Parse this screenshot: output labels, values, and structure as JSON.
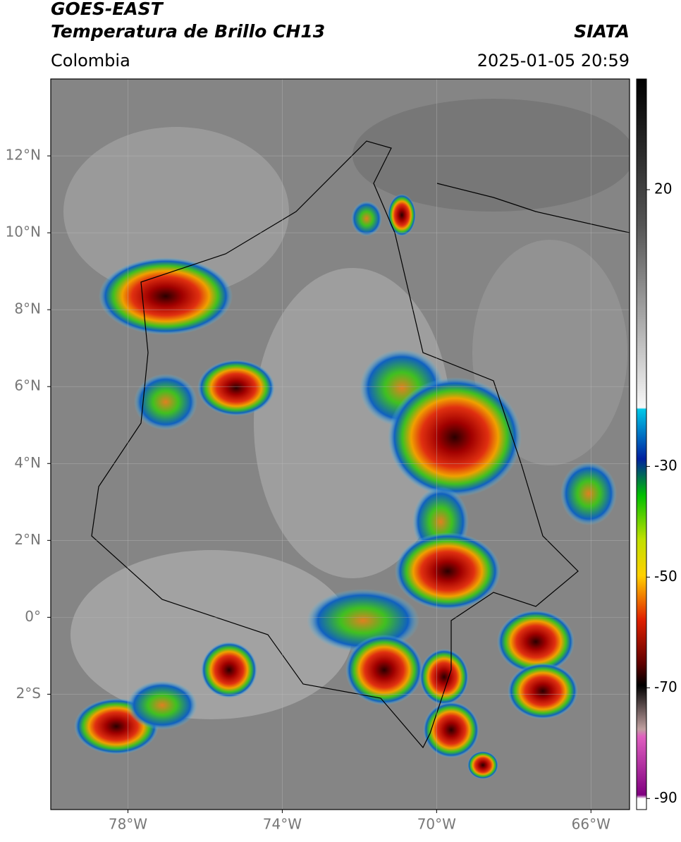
{
  "header": {
    "title": "GOES-EAST",
    "subtitle": "Temperatura de Brillo CH13",
    "source": "SIATA",
    "region": "Colombia",
    "datetime": "2025-01-05 20:59"
  },
  "map": {
    "lonlim": [
      -80,
      -65
    ],
    "latlim": [
      -5,
      14
    ],
    "lon_ticks": [
      {
        "value": -78,
        "label": "78°W"
      },
      {
        "value": -74,
        "label": "74°W"
      },
      {
        "value": -70,
        "label": "70°W"
      },
      {
        "value": -66,
        "label": "66°W"
      }
    ],
    "lat_ticks": [
      {
        "value": 12,
        "label": "12°N"
      },
      {
        "value": 10,
        "label": "10°N"
      },
      {
        "value": 8,
        "label": "8°N"
      },
      {
        "value": 6,
        "label": "6°N"
      },
      {
        "value": 4,
        "label": "4°N"
      },
      {
        "value": 2,
        "label": "2°N"
      },
      {
        "value": 0,
        "label": "0°"
      },
      {
        "value": -2,
        "label": "2°S"
      }
    ]
  },
  "colorbar": {
    "lim": [
      -92,
      40
    ],
    "ticks": [
      20,
      -30,
      -50,
      -70,
      -90
    ]
  }
}
